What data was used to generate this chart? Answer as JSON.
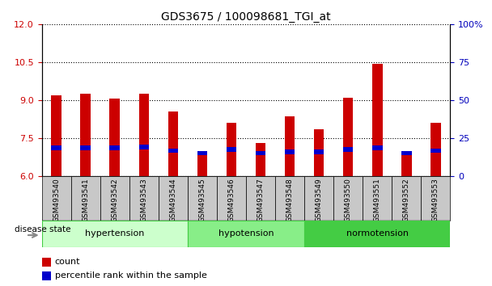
{
  "title": "GDS3675 / 100098681_TGI_at",
  "samples": [
    "GSM493540",
    "GSM493541",
    "GSM493542",
    "GSM493543",
    "GSM493544",
    "GSM493545",
    "GSM493546",
    "GSM493547",
    "GSM493548",
    "GSM493549",
    "GSM493550",
    "GSM493551",
    "GSM493552",
    "GSM493553"
  ],
  "count_values": [
    9.2,
    9.25,
    9.05,
    9.25,
    8.55,
    6.85,
    8.1,
    7.3,
    8.35,
    7.85,
    9.1,
    10.45,
    6.85,
    8.1
  ],
  "percentile_values": [
    7.1,
    7.1,
    7.1,
    7.15,
    7.0,
    6.9,
    7.05,
    6.9,
    6.95,
    6.95,
    7.05,
    7.1,
    6.9,
    7.0
  ],
  "bar_bottom": 6.0,
  "ylim_left": [
    6,
    12
  ],
  "ylim_right": [
    0,
    100
  ],
  "yticks_left": [
    6,
    7.5,
    9,
    10.5,
    12
  ],
  "yticks_right": [
    0,
    25,
    50,
    75,
    100
  ],
  "groups": [
    {
      "label": "hypertension",
      "start": 0,
      "end": 5,
      "color": "#ccffcc",
      "border": "#44cc44"
    },
    {
      "label": "hypotension",
      "start": 5,
      "end": 9,
      "color": "#88ee88",
      "border": "#44cc44"
    },
    {
      "label": "normotension",
      "start": 9,
      "end": 14,
      "color": "#44cc44",
      "border": "#44cc44"
    }
  ],
  "bar_color_red": "#cc0000",
  "bar_color_blue": "#0000cc",
  "bar_width": 0.35,
  "blue_bar_height": 0.18,
  "tick_color_left": "#cc0000",
  "tick_color_right": "#0000bb",
  "disease_state_label": "disease state",
  "legend_count": "count",
  "legend_percentile": "percentile rank within the sample",
  "bg_color": "#ffffff"
}
